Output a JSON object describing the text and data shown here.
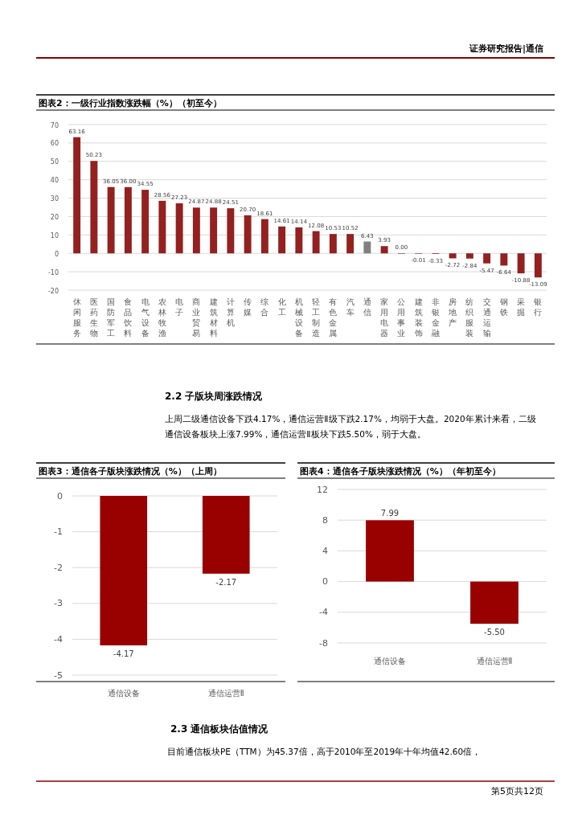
{
  "chart_data": [
    {
      "type": "bar",
      "title": "图表2：一级行业指数涨跌幅（%）（初至今）",
      "categories": [
        "休闲服务",
        "医药生物",
        "国防军工",
        "食品饮料",
        "电气设备",
        "农林牧渔",
        "电子",
        "商业贸易",
        "建筑材料",
        "计算机",
        "传媒",
        "综合",
        "化工",
        "机械设备",
        "轻工制造",
        "有色金属",
        "汽车",
        "通信",
        "家用电器",
        "公用事业",
        "建筑装饰",
        "非银金融",
        "房地产",
        "纺织服装",
        "交通运输",
        "钢铁",
        "采掘",
        "银行"
      ],
      "values": [
        63.16,
        50.23,
        36.05,
        36.0,
        34.55,
        28.56,
        27.23,
        24.87,
        24.88,
        24.51,
        20.7,
        18.61,
        14.61,
        14.14,
        12.08,
        10.53,
        10.52,
        6.43,
        3.93,
        0.0,
        -0.01,
        -0.33,
        -2.72,
        -2.84,
        -5.47,
        -6.64,
        -10.88,
        -13.09
      ],
      "value_labels": [
        "63.16",
        "50.23",
        "36.05",
        "36.00",
        "34.55",
        "28.56",
        "27.23",
        "24.87",
        "24.88",
        "24.51",
        "20.70",
        "18.61",
        "14.61",
        "14.14",
        "12.08",
        "10.53",
        "10.52",
        "6.43",
        "3.93",
        "0.00",
        "-0.01",
        "-0.33",
        "-2.72",
        "-2.84",
        "-5.47",
        "-6.64",
        "-10.88",
        "-13.09"
      ],
      "colors": [
        "#942020",
        "#942020",
        "#942020",
        "#942020",
        "#942020",
        "#942020",
        "#942020",
        "#942020",
        "#942020",
        "#942020",
        "#942020",
        "#942020",
        "#942020",
        "#942020",
        "#942020",
        "#942020",
        "#942020",
        "#808080",
        "#942020",
        "#942020",
        "#942020",
        "#942020",
        "#942020",
        "#942020",
        "#942020",
        "#942020",
        "#942020",
        "#942020"
      ],
      "ylim": [
        -20,
        70
      ],
      "yticks": [
        -20,
        -10,
        0,
        10,
        20,
        30,
        40,
        50,
        60,
        70
      ],
      "grid": "y",
      "annotations": [
        "证券研究报告|通信",
        "2.2 子版块周涨跌情况",
        "上周二级通信设备下跌4.17%，通信运营Ⅱ级下跌2.17%，均弱于大盘。2020年累计来看，二级通信设备板块上涨7.99%，通信运营Ⅱ板块下跌5.50%，弱于大盘。"
      ]
    },
    {
      "type": "bar",
      "title": "图表3：通信各子版块涨跌情况（%）（上周）",
      "categories": [
        "通信设备",
        "通信运营Ⅱ"
      ],
      "values": [
        -4.17,
        -2.17
      ],
      "data_labels": true,
      "color": "#990000",
      "ylim": [
        -5,
        0
      ],
      "yticks": [
        -5,
        -4,
        -3,
        -2,
        -1,
        0
      ],
      "grid": "y",
      "annotations": [
        "2.3 通信板块估值情况",
        "目前通信板块PE（TTM）为45.37倍，高于2010年至2019年十年均值42.60倍，",
        "第5页共12页"
      ]
    },
    {
      "type": "bar",
      "title": "图表4：通信各子版块涨跌情况（%）（年初至今）",
      "categories": [
        "通信设备",
        "通信运营Ⅱ"
      ],
      "values": [
        7.99,
        -5.5
      ],
      "value_labels": [
        "7.99",
        "-5.50"
      ],
      "color": "#990000",
      "ylim": [
        -8,
        12
      ],
      "yticks": [
        -8,
        -4,
        0,
        4,
        8,
        12
      ],
      "grid": "y"
    }
  ]
}
